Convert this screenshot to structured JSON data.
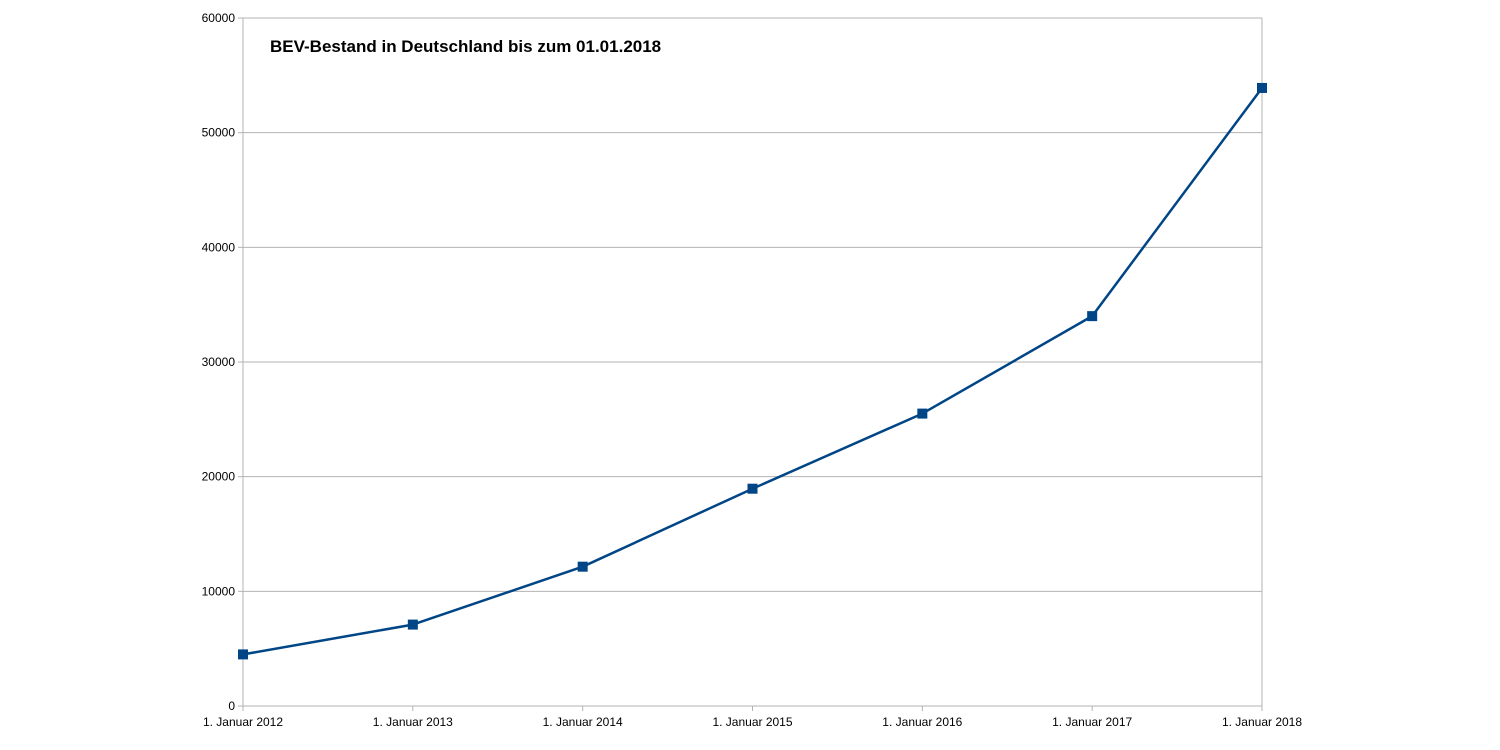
{
  "chart_data": {
    "type": "line",
    "title": "BEV-Bestand in Deutschland bis zum 01.01.2018",
    "xlabel": "",
    "ylabel": "",
    "categories": [
      "1. Januar 2012",
      "1. Januar 2013",
      "1. Januar 2014",
      "1. Januar 2015",
      "1. Januar 2016",
      "1. Januar 2017",
      "1. Januar 2018"
    ],
    "series": [
      {
        "values": [
          4500,
          7100,
          12150,
          18950,
          25500,
          34000,
          53900
        ],
        "color": "#004586"
      }
    ],
    "ylim": [
      0,
      60000
    ],
    "yticks": [
      "0",
      "10000",
      "20000",
      "30000",
      "40000",
      "50000",
      "60000"
    ],
    "grid": true,
    "legend": "none"
  },
  "colors": {
    "grid": "#b3b3b3",
    "axis": "#b3b3b3",
    "series": "#004586"
  }
}
